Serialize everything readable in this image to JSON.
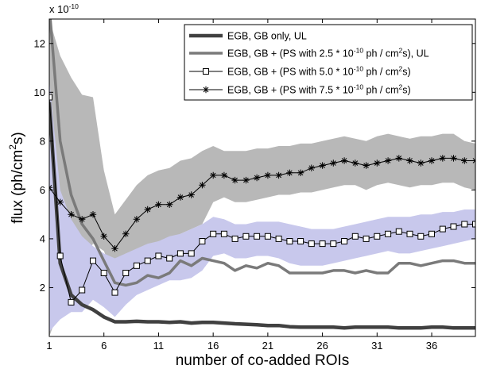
{
  "chart_data": {
    "type": "line",
    "exponent_label": "x 10",
    "exponent_power": "-10",
    "xlabel": "number of co-added ROIs",
    "ylabel_main": "flux (ph/cm",
    "ylabel_sup": "2",
    "ylabel_end": "s)",
    "xlim": [
      1,
      40
    ],
    "ylim": [
      0,
      13
    ],
    "xticks": [
      1,
      6,
      11,
      16,
      21,
      26,
      31,
      36
    ],
    "yticks": [
      2,
      4,
      6,
      8,
      10,
      12
    ],
    "legend_position": "top-right",
    "legend": [
      {
        "parts": [
          "EGB, GB only, UL"
        ]
      },
      {
        "parts": [
          "EGB, GB + (PS with 2.5 * 10",
          "-10",
          " ph / cm",
          "2",
          "s), UL"
        ]
      },
      {
        "parts": [
          "EGB, GB + (PS with 5.0 * 10",
          "-10",
          " ph / cm",
          "2",
          "s)"
        ]
      },
      {
        "parts": [
          "EGB, GB + (PS with 7.5 * 10",
          "-10",
          " ph / cm",
          "2",
          "s)"
        ]
      }
    ],
    "colors": {
      "egb_ul": "#404040",
      "ps25_ul": "#7a7a7a",
      "ps50": "#000000",
      "ps75": "#000000",
      "band_gray": "#b8b8b8",
      "band_blue": "#c8c8ec"
    },
    "x": [
      1,
      2,
      3,
      4,
      5,
      6,
      7,
      8,
      9,
      10,
      11,
      12,
      13,
      14,
      15,
      16,
      17,
      18,
      19,
      20,
      21,
      22,
      23,
      24,
      25,
      26,
      27,
      28,
      29,
      30,
      31,
      32,
      33,
      34,
      35,
      36,
      37,
      38,
      39,
      40
    ],
    "bands": [
      {
        "name_ref": "ps75",
        "color_key": "band_gray",
        "upper": [
          13,
          11.5,
          10.6,
          9.9,
          9.8,
          6.8,
          5.0,
          5.6,
          6.2,
          6.6,
          6.8,
          6.9,
          7.2,
          7.3,
          7.6,
          7.8,
          7.6,
          7.6,
          7.6,
          7.7,
          7.7,
          7.8,
          7.8,
          7.9,
          7.9,
          8.0,
          8.1,
          8.2,
          8.1,
          8.0,
          8.2,
          8.3,
          8.2,
          8.1,
          8.2,
          8.2,
          8.3,
          8.3,
          8.0,
          7.9
        ],
        "lower": [
          0,
          1.2,
          2.0,
          3.0,
          3.8,
          3.5,
          2.4,
          3.0,
          3.3,
          3.7,
          3.9,
          4.0,
          4.2,
          4.4,
          4.6,
          5.5,
          5.7,
          5.5,
          5.5,
          5.6,
          5.7,
          5.8,
          5.8,
          5.9,
          5.9,
          6.0,
          6.1,
          6.2,
          6.2,
          6.0,
          6.2,
          6.3,
          6.2,
          6.1,
          6.2,
          6.2,
          6.3,
          6.3,
          6.1,
          6.0
        ]
      },
      {
        "name_ref": "ps50",
        "color_key": "band_blue",
        "upper": [
          10.5,
          6.0,
          4.8,
          4.1,
          3.7,
          3.4,
          3.2,
          3.4,
          3.6,
          3.8,
          3.9,
          4.1,
          4.2,
          4.4,
          4.6,
          4.9,
          4.8,
          4.6,
          4.6,
          4.7,
          4.7,
          4.7,
          4.6,
          4.5,
          4.4,
          4.4,
          4.4,
          4.5,
          4.6,
          4.7,
          4.8,
          4.9,
          4.9,
          4.9,
          5.0,
          5.0,
          5.1,
          5.1,
          5.2,
          5.2
        ],
        "lower": [
          0.2,
          0.7,
          1.0,
          1.0,
          1.5,
          1.2,
          0.8,
          1.3,
          1.7,
          1.9,
          2.1,
          2.3,
          2.3,
          2.4,
          2.7,
          3.3,
          3.4,
          3.2,
          3.2,
          3.3,
          3.3,
          3.2,
          3.0,
          2.9,
          2.9,
          2.9,
          3.0,
          3.1,
          3.2,
          3.3,
          3.4,
          3.5,
          3.4,
          3.4,
          3.5,
          3.6,
          3.7,
          3.8,
          3.9,
          4.0
        ]
      }
    ],
    "series": [
      {
        "key": "egb_ul",
        "color_key": "egb_ul",
        "width": 4.5,
        "marker": "none",
        "values": [
          9.6,
          3.0,
          1.7,
          1.3,
          1.1,
          0.8,
          0.6,
          0.6,
          0.62,
          0.6,
          0.6,
          0.58,
          0.6,
          0.55,
          0.58,
          0.58,
          0.55,
          0.52,
          0.5,
          0.48,
          0.45,
          0.45,
          0.4,
          0.38,
          0.38,
          0.38,
          0.38,
          0.35,
          0.38,
          0.38,
          0.38,
          0.38,
          0.35,
          0.35,
          0.35,
          0.38,
          0.38,
          0.35,
          0.35,
          0.35
        ]
      },
      {
        "key": "ps25_ul",
        "color_key": "ps25_ul",
        "width": 3.5,
        "marker": "none",
        "values": [
          13.5,
          8.0,
          5.8,
          4.6,
          4.0,
          3.1,
          2.2,
          2.1,
          2.2,
          2.5,
          2.4,
          2.6,
          3.1,
          2.9,
          3.2,
          3.1,
          3.0,
          2.7,
          2.9,
          2.8,
          3.0,
          2.9,
          2.6,
          2.6,
          2.6,
          2.6,
          2.7,
          2.7,
          2.6,
          2.7,
          2.6,
          2.6,
          3.0,
          3.0,
          2.9,
          3.0,
          3.1,
          3.1,
          3.0,
          3.0
        ]
      },
      {
        "key": "ps50",
        "color_key": "ps50",
        "width": 1,
        "marker": "square",
        "values": [
          9.8,
          3.3,
          1.4,
          1.9,
          3.1,
          2.6,
          1.8,
          2.6,
          2.9,
          3.1,
          3.3,
          3.2,
          3.4,
          3.4,
          3.9,
          4.2,
          4.2,
          4.0,
          4.1,
          4.1,
          4.1,
          4.0,
          3.9,
          3.9,
          3.8,
          3.8,
          3.8,
          3.9,
          4.1,
          4.0,
          4.1,
          4.2,
          4.3,
          4.2,
          4.1,
          4.2,
          4.4,
          4.5,
          4.6,
          4.6
        ]
      },
      {
        "key": "ps75",
        "color_key": "ps75",
        "width": 1,
        "marker": "star",
        "values": [
          6.1,
          5.5,
          5.0,
          4.8,
          5.0,
          4.1,
          3.6,
          4.2,
          4.8,
          5.2,
          5.4,
          5.4,
          5.7,
          5.8,
          6.2,
          6.6,
          6.6,
          6.4,
          6.4,
          6.5,
          6.6,
          6.6,
          6.7,
          6.7,
          6.9,
          7.0,
          7.1,
          7.2,
          7.1,
          7.0,
          7.1,
          7.2,
          7.3,
          7.2,
          7.1,
          7.2,
          7.3,
          7.3,
          7.2,
          7.2
        ]
      }
    ]
  }
}
